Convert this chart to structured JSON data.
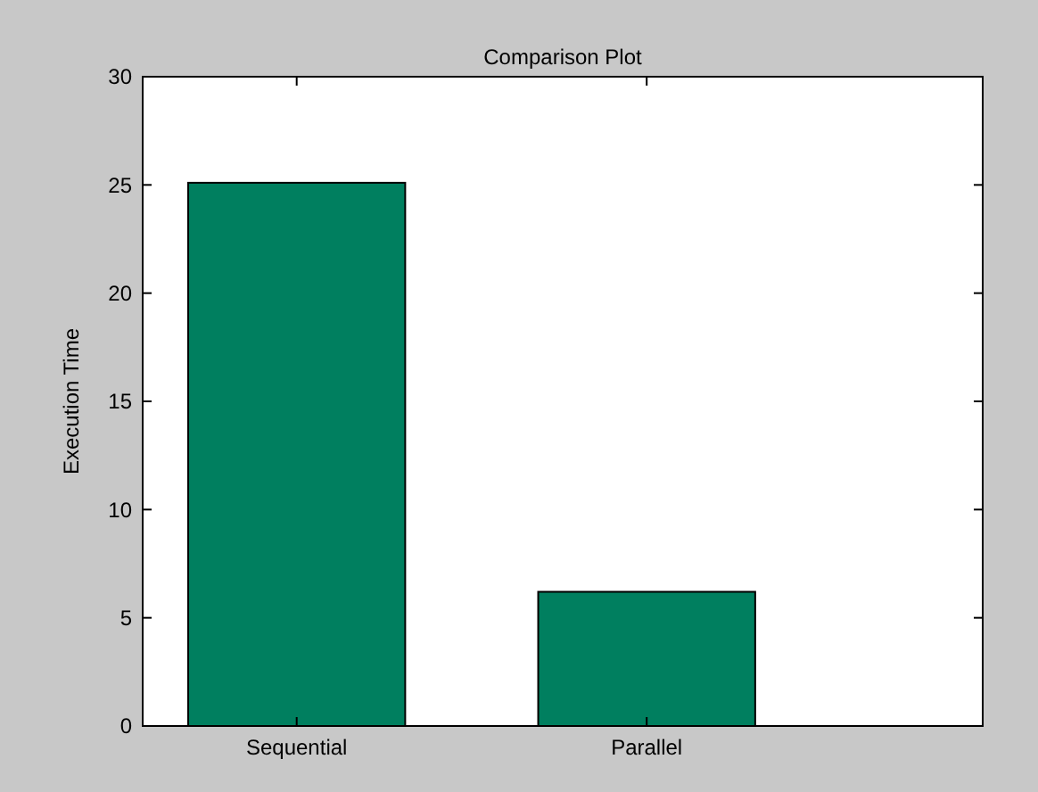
{
  "chart_data": {
    "type": "bar",
    "title": "Comparison Plot",
    "ylabel": "Execution Time",
    "categories": [
      "Sequential",
      "Parallel"
    ],
    "values": [
      25.1,
      6.2
    ],
    "color": "#007f5f",
    "ylim": [
      0,
      30
    ],
    "yticks": [
      0,
      5,
      10,
      15,
      20,
      25,
      30
    ],
    "grid": false
  }
}
